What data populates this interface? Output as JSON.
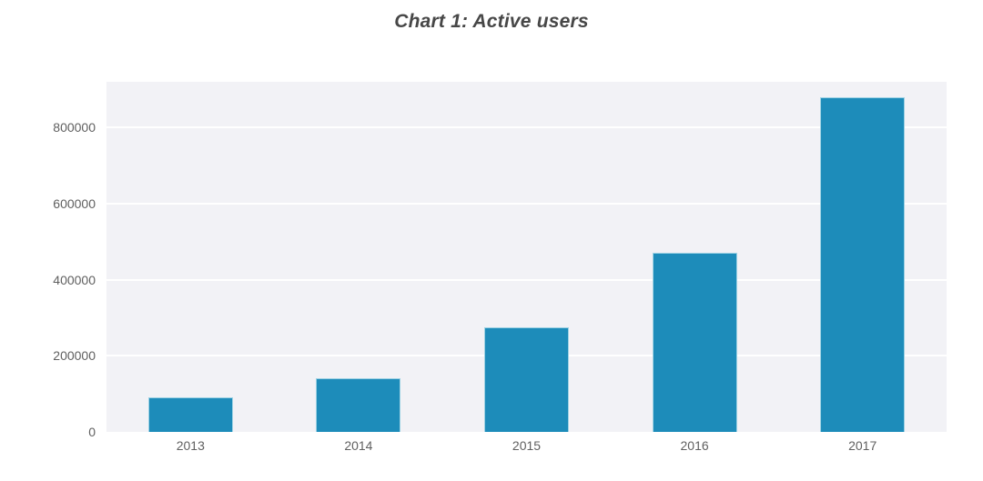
{
  "chart_data": {
    "type": "bar",
    "title": "Chart 1: Active users",
    "categories": [
      "2013",
      "2014",
      "2015",
      "2016",
      "2017"
    ],
    "values": [
      90000,
      140000,
      275000,
      470000,
      880000
    ],
    "xlabel": "",
    "ylabel": "",
    "ylim": [
      0,
      920000
    ],
    "yticks": [
      0,
      200000,
      400000,
      600000,
      800000
    ],
    "grid": true,
    "legend": false,
    "colors": {
      "bar_fill": "#1d8cba",
      "bar_border": "#9ed2e4",
      "plot_background": "#f2f2f6",
      "gridline": "#ffffff",
      "tick_label": "#606060",
      "title": "#474747"
    }
  }
}
